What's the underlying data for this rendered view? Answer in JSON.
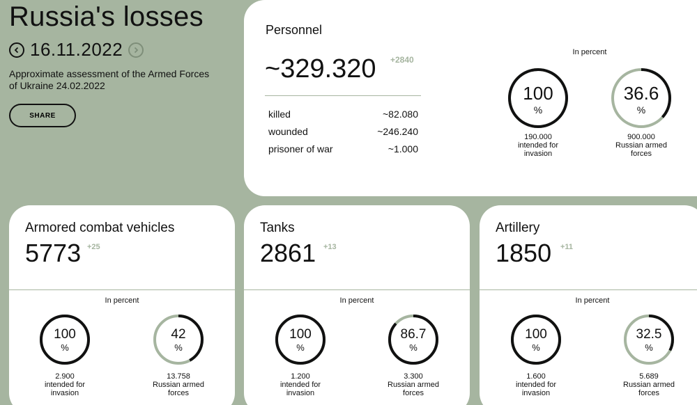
{
  "header": {
    "title": "Russia's losses",
    "date": "16.11.2022",
    "subtitle": "Approximate assessment of the Armed Forces of Ukraine 24.02.2022",
    "share_label": "SHARE",
    "prev_icon": "chevron-left-icon",
    "next_icon": "chevron-right-icon"
  },
  "colors": {
    "accent": "#a6b5a0",
    "background": "#a6b5a0",
    "card": "#ffffff",
    "ring_track": "#a6b5a0",
    "ring_fill": "#111111"
  },
  "personnel": {
    "title": "Personnel",
    "total": "~329.320",
    "delta": "+2840",
    "rows": [
      {
        "label": "killed",
        "value": "~82.080"
      },
      {
        "label": "wounded",
        "value": "~246.240"
      },
      {
        "label": "prisoner of war",
        "value": "~1.000"
      }
    ],
    "in_percent": "In percent",
    "circles": [
      {
        "pct": 100,
        "value": "100",
        "unit": "%",
        "caption1": "190.000",
        "caption2": "intended for",
        "caption3": "invasion"
      },
      {
        "pct": 36.6,
        "value": "36.6",
        "unit": "%",
        "caption1": "900.000",
        "caption2": "Russian armed",
        "caption3": "forces"
      }
    ]
  },
  "cards": [
    {
      "title": "Armored combat vehicles",
      "number": "5773",
      "delta": "+25",
      "in_percent": "In percent",
      "circles": [
        {
          "pct": 100,
          "value": "100",
          "unit": "%",
          "caption1": "2.900",
          "caption2": "intended for",
          "caption3": "invasion"
        },
        {
          "pct": 42,
          "value": "42",
          "unit": "%",
          "caption1": "13.758",
          "caption2": "Russian armed",
          "caption3": "forces"
        }
      ]
    },
    {
      "title": "Tanks",
      "number": "2861",
      "delta": "+13",
      "in_percent": "In percent",
      "circles": [
        {
          "pct": 100,
          "value": "100",
          "unit": "%",
          "caption1": "1.200",
          "caption2": "intended for",
          "caption3": "invasion"
        },
        {
          "pct": 86.7,
          "value": "86.7",
          "unit": "%",
          "caption1": "3.300",
          "caption2": "Russian armed",
          "caption3": "forces"
        }
      ]
    },
    {
      "title": "Artillery",
      "number": "1850",
      "delta": "+11",
      "in_percent": "In percent",
      "circles": [
        {
          "pct": 100,
          "value": "100",
          "unit": "%",
          "caption1": "1.600",
          "caption2": "intended for",
          "caption3": "invasion"
        },
        {
          "pct": 32.5,
          "value": "32.5",
          "unit": "%",
          "caption1": "5.689",
          "caption2": "Russian armed",
          "caption3": "forces"
        }
      ]
    }
  ]
}
